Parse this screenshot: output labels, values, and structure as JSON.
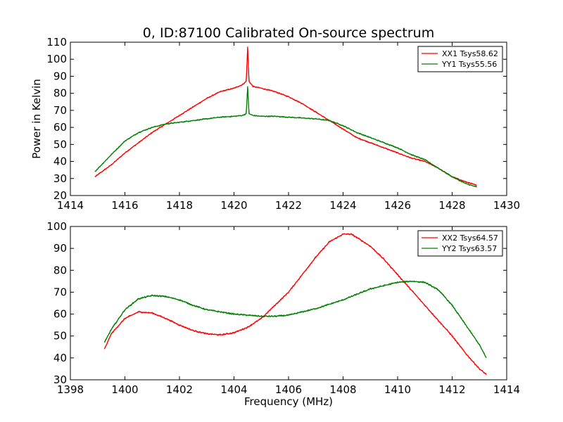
{
  "figure": {
    "title": "0, ID:87100 Calibrated On-source spectrum"
  },
  "chart_data": [
    {
      "type": "line",
      "title": "0, ID:87100 Calibrated On-source spectrum",
      "xlabel": "",
      "ylabel": "Power in Kelvin",
      "xlim": [
        1414,
        1430
      ],
      "ylim": [
        20,
        110
      ],
      "xticks": [
        1414,
        1416,
        1418,
        1420,
        1422,
        1424,
        1426,
        1428,
        1430
      ],
      "yticks": [
        20,
        30,
        40,
        50,
        60,
        70,
        80,
        90,
        100,
        110
      ],
      "grid": false,
      "legend_position": "top-right",
      "series": [
        {
          "name": "XX1 Tsys58.62",
          "color": "#ff0000",
          "x": [
            1414.9,
            1415.5,
            1416.0,
            1416.5,
            1417.0,
            1417.5,
            1418.0,
            1418.5,
            1419.0,
            1419.5,
            1420.0,
            1420.3,
            1420.45,
            1420.5,
            1420.55,
            1420.7,
            1421.0,
            1421.5,
            1422.0,
            1422.5,
            1423.0,
            1423.5,
            1424.0,
            1424.5,
            1425.0,
            1425.5,
            1426.0,
            1426.5,
            1427.0,
            1427.5,
            1428.0,
            1428.5,
            1428.9
          ],
          "y": [
            31,
            38,
            45,
            51,
            57,
            62,
            67,
            72,
            77,
            81,
            83,
            85,
            87,
            107,
            87,
            84,
            83,
            81,
            78,
            74,
            69,
            64,
            59,
            54,
            51,
            48,
            45,
            42,
            40,
            36,
            31,
            28,
            26
          ]
        },
        {
          "name": "YY1 Tsys55.56",
          "color": "#008000",
          "x": [
            1414.9,
            1415.5,
            1416.0,
            1416.5,
            1417.0,
            1417.5,
            1418.0,
            1418.5,
            1419.0,
            1419.5,
            1420.0,
            1420.3,
            1420.45,
            1420.5,
            1420.55,
            1420.7,
            1421.0,
            1421.5,
            1422.0,
            1422.5,
            1423.0,
            1423.5,
            1424.0,
            1424.5,
            1425.0,
            1425.5,
            1426.0,
            1426.5,
            1427.0,
            1427.5,
            1428.0,
            1428.5,
            1428.9
          ],
          "y": [
            34,
            44,
            52,
            57,
            60,
            62,
            63,
            64,
            65,
            66,
            66.5,
            67,
            68,
            84,
            68,
            67,
            66.5,
            66.5,
            66,
            65.5,
            65,
            64,
            61,
            57,
            54,
            51,
            48,
            44,
            41,
            36,
            31,
            27,
            25
          ]
        }
      ]
    },
    {
      "type": "line",
      "title": "",
      "xlabel": "Frequency (MHz)",
      "ylabel": "",
      "xlim": [
        1398,
        1414
      ],
      "ylim": [
        30,
        100
      ],
      "xticks": [
        1398,
        1400,
        1402,
        1404,
        1406,
        1408,
        1410,
        1412,
        1414
      ],
      "yticks": [
        30,
        40,
        50,
        60,
        70,
        80,
        90,
        100
      ],
      "grid": false,
      "legend_position": "top-right",
      "series": [
        {
          "name": "XX2 Tsys64.57",
          "color": "#ff0000",
          "x": [
            1399.25,
            1399.5,
            1400.0,
            1400.5,
            1401.0,
            1401.5,
            1402.0,
            1402.5,
            1403.0,
            1403.5,
            1404.0,
            1404.5,
            1405.0,
            1405.5,
            1406.0,
            1406.5,
            1407.0,
            1407.5,
            1408.0,
            1408.3,
            1408.5,
            1409.0,
            1409.5,
            1410.0,
            1410.5,
            1411.0,
            1411.5,
            1412.0,
            1412.5,
            1413.0,
            1413.25
          ],
          "y": [
            44,
            51,
            58,
            61,
            60.5,
            58,
            55,
            52.5,
            51,
            50.5,
            51.5,
            54,
            58,
            64,
            70,
            78,
            86,
            93,
            96.5,
            96.5,
            95,
            91,
            85,
            78,
            71,
            64,
            57,
            50,
            42,
            35,
            32.5
          ]
        },
        {
          "name": "YY2 Tsys63.57",
          "color": "#008000",
          "x": [
            1399.25,
            1399.5,
            1400.0,
            1400.5,
            1401.0,
            1401.5,
            1402.0,
            1402.5,
            1403.0,
            1403.5,
            1404.0,
            1404.5,
            1405.0,
            1405.5,
            1406.0,
            1406.5,
            1407.0,
            1407.5,
            1408.0,
            1408.5,
            1409.0,
            1409.5,
            1410.0,
            1410.5,
            1411.0,
            1411.5,
            1412.0,
            1412.5,
            1413.0,
            1413.25
          ],
          "y": [
            47,
            53,
            62,
            67,
            68.5,
            68,
            66.5,
            64,
            62,
            61,
            60,
            59.5,
            59,
            59,
            59.5,
            61,
            62.5,
            64.5,
            66.5,
            69,
            71.5,
            73,
            74.5,
            75,
            74.5,
            71,
            64,
            55,
            46,
            40
          ]
        }
      ]
    }
  ]
}
